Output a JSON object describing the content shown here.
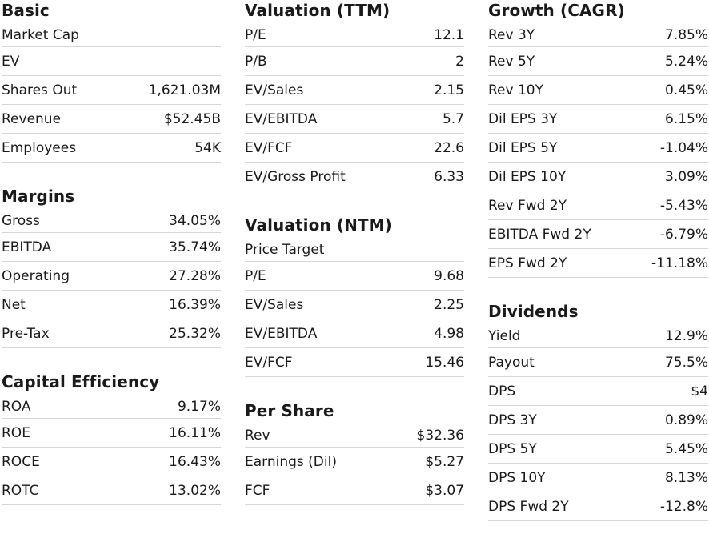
{
  "columns": [
    {
      "sections": [
        {
          "title": "Basic",
          "rows": [
            {
              "label": "Market Cap",
              "value": ""
            },
            {
              "label": "EV",
              "value": ""
            },
            {
              "label": "Shares Out",
              "value": "1,621.03M"
            },
            {
              "label": "Revenue",
              "value": "$52.45B"
            },
            {
              "label": "Employees",
              "value": "54K"
            }
          ]
        },
        {
          "title": "Margins",
          "rows": [
            {
              "label": "Gross",
              "value": "34.05%"
            },
            {
              "label": "EBITDA",
              "value": "35.74%"
            },
            {
              "label": "Operating",
              "value": "27.28%"
            },
            {
              "label": "Net",
              "value": "16.39%"
            },
            {
              "label": "Pre-Tax",
              "value": "25.32%"
            }
          ]
        },
        {
          "title": "Capital Efficiency",
          "rows": [
            {
              "label": "ROA",
              "value": "9.17%"
            },
            {
              "label": "ROE",
              "value": "16.11%"
            },
            {
              "label": "ROCE",
              "value": "16.43%"
            },
            {
              "label": "ROTC",
              "value": "13.02%"
            }
          ]
        }
      ]
    },
    {
      "sections": [
        {
          "title": "Valuation (TTM)",
          "rows": [
            {
              "label": "P/E",
              "value": "12.1"
            },
            {
              "label": "P/B",
              "value": "2"
            },
            {
              "label": "EV/Sales",
              "value": "2.15"
            },
            {
              "label": "EV/EBITDA",
              "value": "5.7"
            },
            {
              "label": "EV/FCF",
              "value": "22.6"
            },
            {
              "label": "EV/Gross Profit",
              "value": "6.33"
            }
          ]
        },
        {
          "title": "Valuation (NTM)",
          "rows": [
            {
              "label": "Price Target",
              "value": ""
            },
            {
              "label": "P/E",
              "value": "9.68"
            },
            {
              "label": "EV/Sales",
              "value": "2.25"
            },
            {
              "label": "EV/EBITDA",
              "value": "4.98"
            },
            {
              "label": "EV/FCF",
              "value": "15.46"
            }
          ]
        },
        {
          "title": "Per Share",
          "rows": [
            {
              "label": "Rev",
              "value": "$32.36"
            },
            {
              "label": "Earnings (Dil)",
              "value": "$5.27"
            },
            {
              "label": "FCF",
              "value": "$3.07"
            }
          ]
        }
      ]
    },
    {
      "sections": [
        {
          "title": "Growth (CAGR)",
          "rows": [
            {
              "label": "Rev 3Y",
              "value": "7.85%"
            },
            {
              "label": "Rev 5Y",
              "value": "5.24%"
            },
            {
              "label": "Rev 10Y",
              "value": "0.45%"
            },
            {
              "label": "Dil EPS 3Y",
              "value": "6.15%"
            },
            {
              "label": "Dil EPS 5Y",
              "value": "-1.04%"
            },
            {
              "label": "Dil EPS 10Y",
              "value": "3.09%"
            },
            {
              "label": "Rev Fwd 2Y",
              "value": "-5.43%"
            },
            {
              "label": "EBITDA Fwd 2Y",
              "value": "-6.79%"
            },
            {
              "label": "EPS Fwd 2Y",
              "value": "-11.18%"
            }
          ]
        },
        {
          "title": "Dividends",
          "rows": [
            {
              "label": "Yield",
              "value": "12.9%"
            },
            {
              "label": "Payout",
              "value": "75.5%"
            },
            {
              "label": "DPS",
              "value": "$4"
            },
            {
              "label": "DPS 3Y",
              "value": "0.89%"
            },
            {
              "label": "DPS 5Y",
              "value": "5.45%"
            },
            {
              "label": "DPS 10Y",
              "value": "8.13%"
            },
            {
              "label": "DPS Fwd 2Y",
              "value": "-12.8%"
            }
          ]
        }
      ]
    }
  ]
}
